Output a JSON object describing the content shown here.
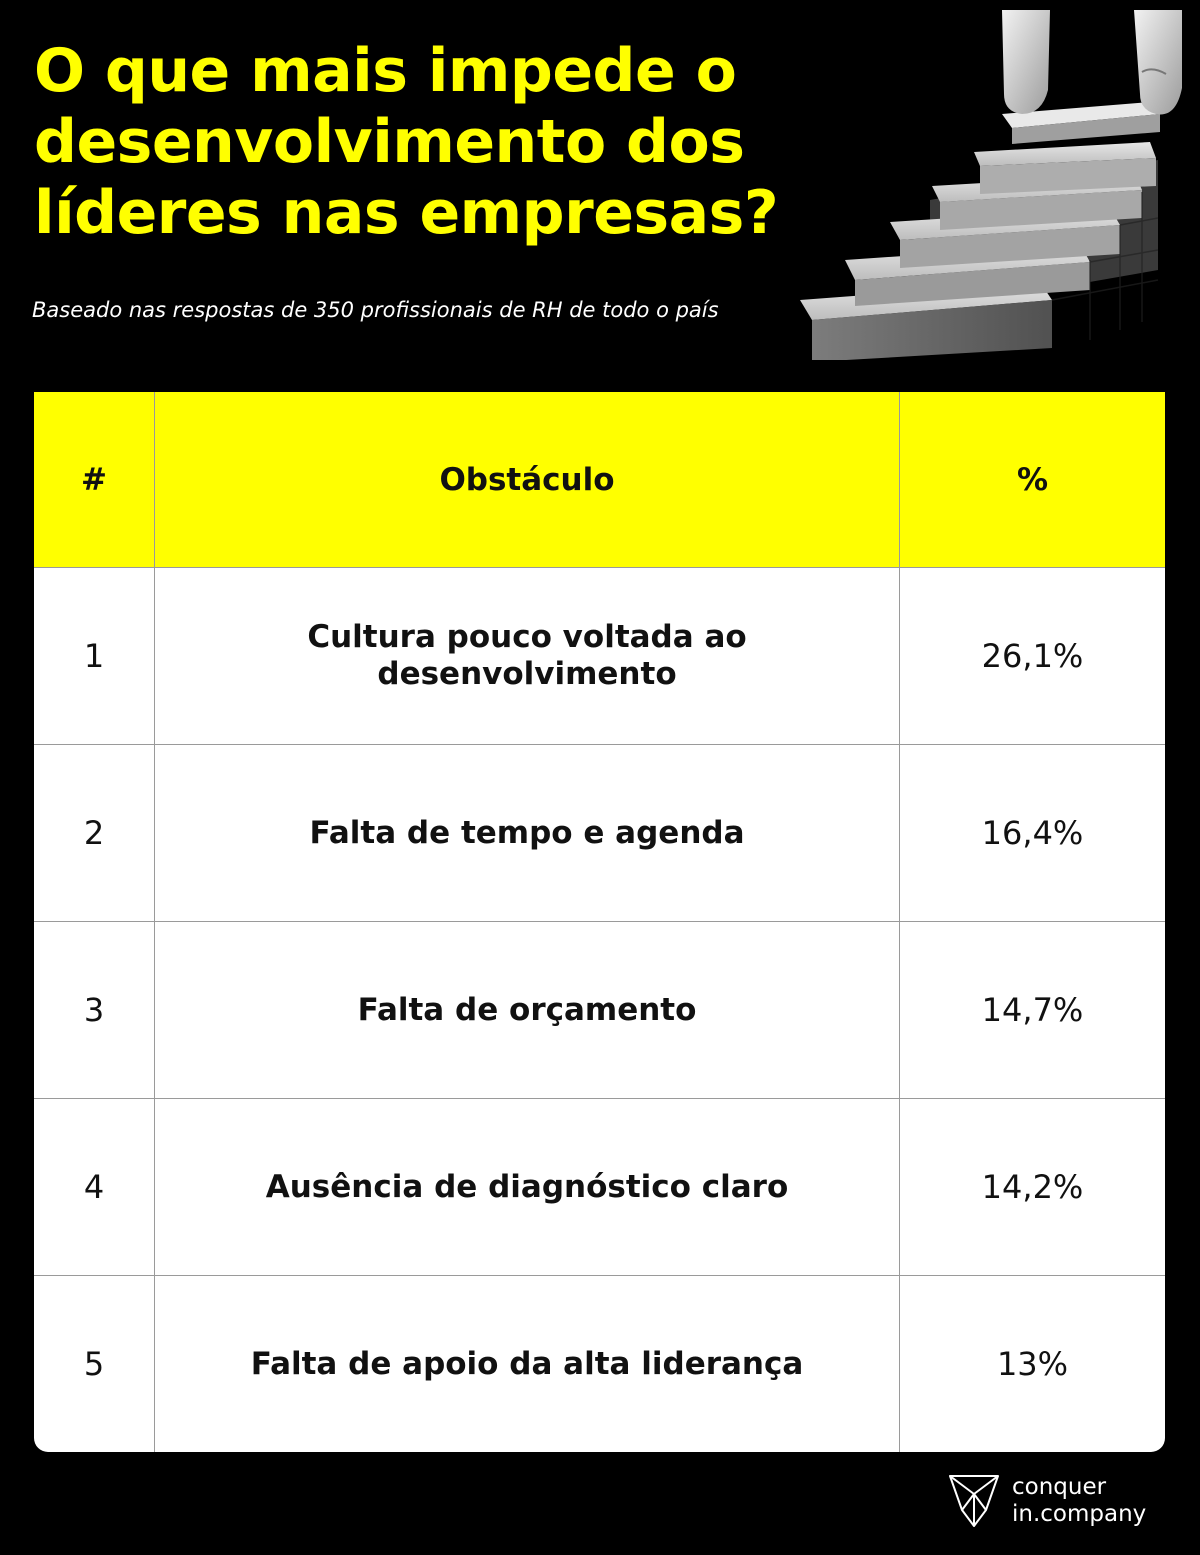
{
  "title": {
    "lines": [
      "O que mais impede o",
      "desenvolvimento dos",
      "líderes nas empresas?"
    ]
  },
  "subtitle": "Baseado nas respostas de 350 profissionais de RH de todo o país",
  "colors": {
    "background": "#000000",
    "accent": "#ffff00",
    "table_background": "#ffffff",
    "text": "#111111",
    "grid": "#9a9a9a"
  },
  "chart_data": {
    "type": "table",
    "columns": [
      "#",
      "Obstáculo",
      "%"
    ],
    "rows": [
      {
        "rank": "1",
        "obstacle": "Cultura pouco voltada ao desenvolvimento",
        "percent": "26,1%"
      },
      {
        "rank": "2",
        "obstacle": "Falta de tempo e agenda",
        "percent": "16,4%"
      },
      {
        "rank": "3",
        "obstacle": "Falta de orçamento",
        "percent": "14,7%"
      },
      {
        "rank": "4",
        "obstacle": "Ausência de diagnóstico claro",
        "percent": "14,2%"
      },
      {
        "rank": "5",
        "obstacle": "Falta de apoio da alta liderança",
        "percent": "13%"
      }
    ]
  },
  "illustration": {
    "icon": "stairs-blocks-hand-icon"
  },
  "logo": {
    "icon": "conquer-geometric-logo-icon",
    "line1": "conquer",
    "line2": "in.company"
  }
}
